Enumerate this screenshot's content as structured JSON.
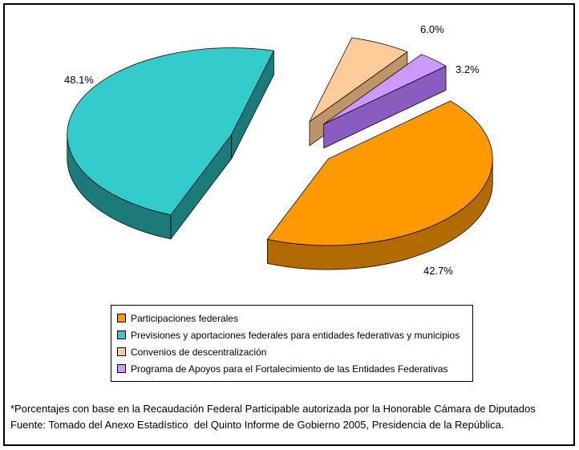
{
  "chart_data": {
    "type": "pie",
    "style": "3d-exploded",
    "title": "",
    "labels": [
      "Participaciones federales",
      "Previsiones y aportaciones federales para entidades federativas y municipios",
      "Convenios de descentralización",
      "Programa de Apoyos para el Fortalecimiento de las Entidades Federativas"
    ],
    "values": [
      42.7,
      48.1,
      6.0,
      3.2
    ],
    "value_labels": [
      "42.7%",
      "48.1%",
      "6.0%",
      "3.2%"
    ],
    "colors": [
      "#FF9900",
      "#33CCCC",
      "#FFCC99",
      "#CC99FF"
    ],
    "side_colors": [
      "#B26B00",
      "#1D7A7A",
      "#BF9466",
      "#8A5CC0"
    ],
    "legend_position": "bottom-center",
    "grid": false
  },
  "footnote": {
    "line1": "*Porcentajes con base en la Recaudación Federal Participable autorizada por la Honorable Cámara de Diputados",
    "line2": "Fuente: Tomado del Anexo Estadístico  del Quinto Informe de Gobierno 2005, Presidencia de la República."
  }
}
